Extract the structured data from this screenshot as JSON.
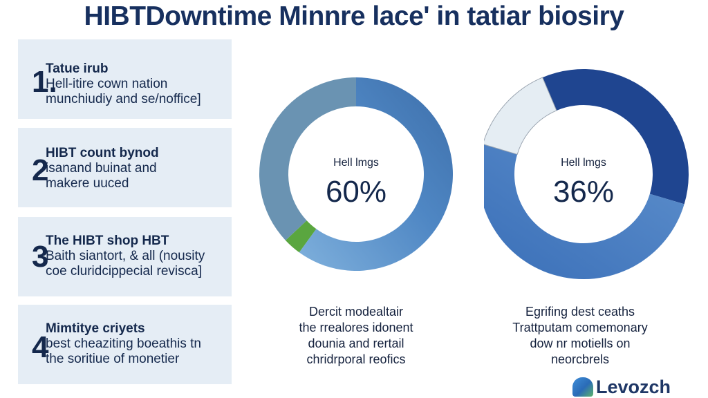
{
  "title": "HIBTDowntime Minnre lace' in tatiar biosiry",
  "panels": [
    {
      "number": "1.",
      "title": "Tatue irub",
      "lines": [
        "Hell-itire cown nation",
        "munchiudiy and se/noffice]"
      ]
    },
    {
      "number": "2",
      "title": "HIBT count bynod",
      "lines": [
        "isanand buinat and",
        "makere uuced"
      ]
    },
    {
      "number": "3",
      "title": "The HIBT shop HBT",
      "lines": [
        "Baith siantort, & all (nousity",
        "coe cluridcippecial revisca]"
      ]
    },
    {
      "number": "4",
      "title": "Mimtitye criyets",
      "lines": [
        "best cheaziting boeathis tn",
        "the soritiue of monetier"
      ]
    }
  ],
  "chart_data": [
    {
      "type": "pie",
      "center_label": "Hell lmgs",
      "center_value": "60%",
      "slices": [
        {
          "label": "blue",
          "value": 60,
          "color": "#4f87c4"
        },
        {
          "label": "green",
          "value": 3,
          "color": "#5aa63f"
        },
        {
          "label": "grey-blue",
          "value": 37,
          "color": "#6a93b2"
        }
      ],
      "caption_lines": [
        "Dercit modealtair",
        "the rrealores idonent",
        "dounia and rertail",
        "chridrporal reofics"
      ]
    },
    {
      "type": "pie",
      "center_label": "Hell lmgs",
      "center_value": "36%",
      "slices": [
        {
          "label": "dark blue",
          "value": 36,
          "color": "#1f4590"
        },
        {
          "label": "mid blue",
          "value": 50,
          "color": "#3f72b8"
        },
        {
          "label": "light",
          "value": 14,
          "color": "#e5edf3"
        }
      ],
      "caption_lines": [
        "Egrifing dest ceaths",
        "Trattputam comemonary",
        "dow nr motiells on",
        "neorcbrels"
      ]
    }
  ],
  "logo": {
    "text": "Levozch"
  }
}
